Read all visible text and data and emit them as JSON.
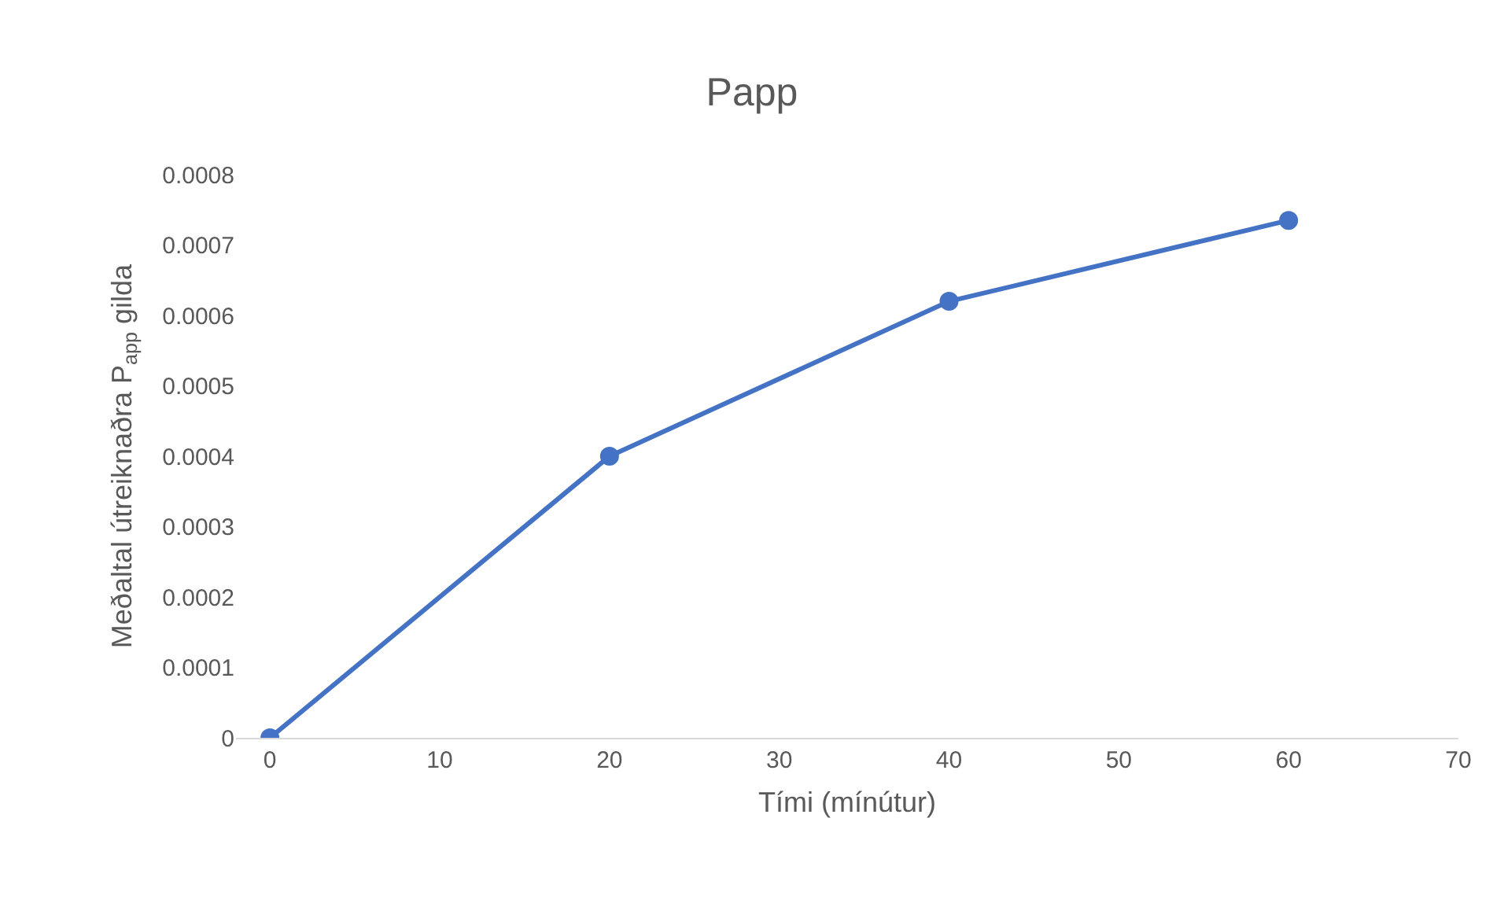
{
  "chart_data": {
    "type": "line",
    "title": "Papp",
    "xlabel": "Tími (mínútur)",
    "ylabel": "Meðaltal útreiknaðra P$_{app}$ gilda",
    "x": [
      0,
      20,
      40,
      60
    ],
    "series": [
      {
        "color": "#4472c4",
        "values": [
          0,
          0.0004,
          0.00062,
          0.000735
        ]
      }
    ],
    "xlim": [
      -2,
      70
    ],
    "xticks": [
      0,
      10,
      20,
      30,
      40,
      50,
      60,
      70
    ],
    "ylim": [
      0,
      0.0008
    ],
    "yticks": [
      0,
      0.0001,
      0.0002,
      0.0003,
      0.0004,
      0.0005,
      0.0006,
      0.0007,
      0.0008
    ],
    "grid": false,
    "marker": "circle",
    "line_style": "solid"
  }
}
